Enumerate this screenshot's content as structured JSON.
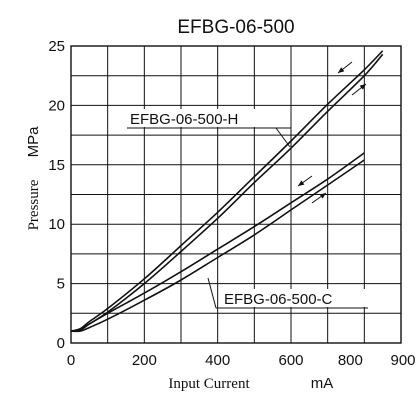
{
  "chart_data": {
    "type": "line",
    "title": "EFBG-06-500",
    "xlabel": "Input Current",
    "xunit": "mA",
    "ylabel": "Pressure",
    "yunit": "MPa",
    "xlim": [
      0,
      900
    ],
    "ylim": [
      0,
      25
    ],
    "xticks": [
      0,
      200,
      400,
      600,
      800,
      900
    ],
    "yticks": [
      0,
      5,
      10,
      15,
      20,
      25
    ],
    "grid": true,
    "hysteresis_arrows": true,
    "series": [
      {
        "name": "EFBG-06-500-H",
        "color": "#111111",
        "up": {
          "x": [
            0,
            25,
            50,
            100,
            200,
            300,
            400,
            500,
            600,
            700,
            800,
            850
          ],
          "y": [
            1.0,
            1.1,
            1.6,
            2.6,
            5.0,
            7.7,
            10.5,
            13.5,
            16.4,
            19.5,
            22.5,
            24.3
          ]
        },
        "down": {
          "x": [
            0,
            25,
            50,
            100,
            200,
            300,
            400,
            500,
            600,
            700,
            800,
            850
          ],
          "y": [
            1.0,
            1.2,
            1.8,
            2.9,
            5.4,
            8.2,
            11.0,
            14.0,
            17.0,
            20.1,
            23.0,
            24.6
          ]
        }
      },
      {
        "name": "EFBG-06-500-C",
        "color": "#111111",
        "up": {
          "x": [
            0,
            25,
            50,
            100,
            200,
            300,
            400,
            500,
            600,
            700,
            800
          ],
          "y": [
            1.0,
            1.0,
            1.3,
            2.0,
            3.6,
            5.3,
            7.2,
            9.1,
            11.2,
            13.3,
            15.4
          ]
        },
        "down": {
          "x": [
            0,
            25,
            50,
            100,
            200,
            300,
            400,
            500,
            600,
            700,
            800
          ],
          "y": [
            1.0,
            1.1,
            1.6,
            2.5,
            4.2,
            6.0,
            7.9,
            9.8,
            11.8,
            13.8,
            16.0
          ]
        }
      }
    ]
  }
}
